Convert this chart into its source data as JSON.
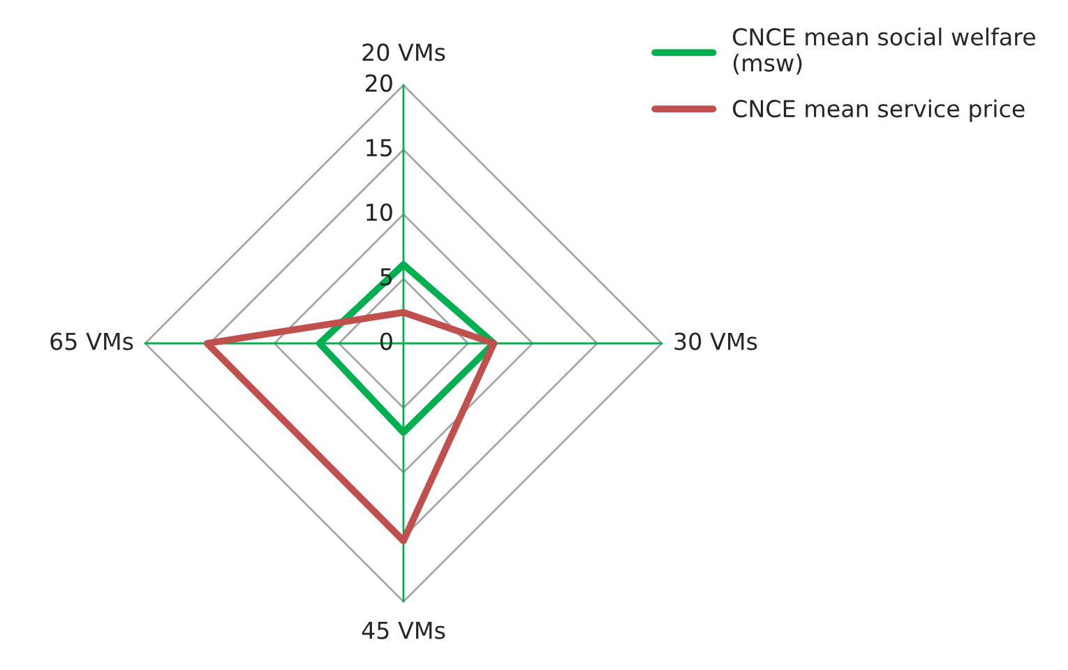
{
  "chart_data": {
    "type": "radar",
    "categories": [
      "20 VMs",
      "30 VMs",
      "45 VMs",
      "65 VMs"
    ],
    "series": [
      {
        "name": "CNCE mean social welfare (msw)",
        "color": "#00b050",
        "values": [
          6.1,
          7.0,
          6.9,
          6.5
        ]
      },
      {
        "name": "CNCE mean service price",
        "color": "#c0504d",
        "values": [
          2.4,
          7.0,
          15.3,
          15.2
        ]
      }
    ],
    "ylim": [
      0,
      20
    ],
    "yticks": [
      0,
      5,
      10,
      15,
      20
    ],
    "grid": true,
    "legend": "top right"
  }
}
